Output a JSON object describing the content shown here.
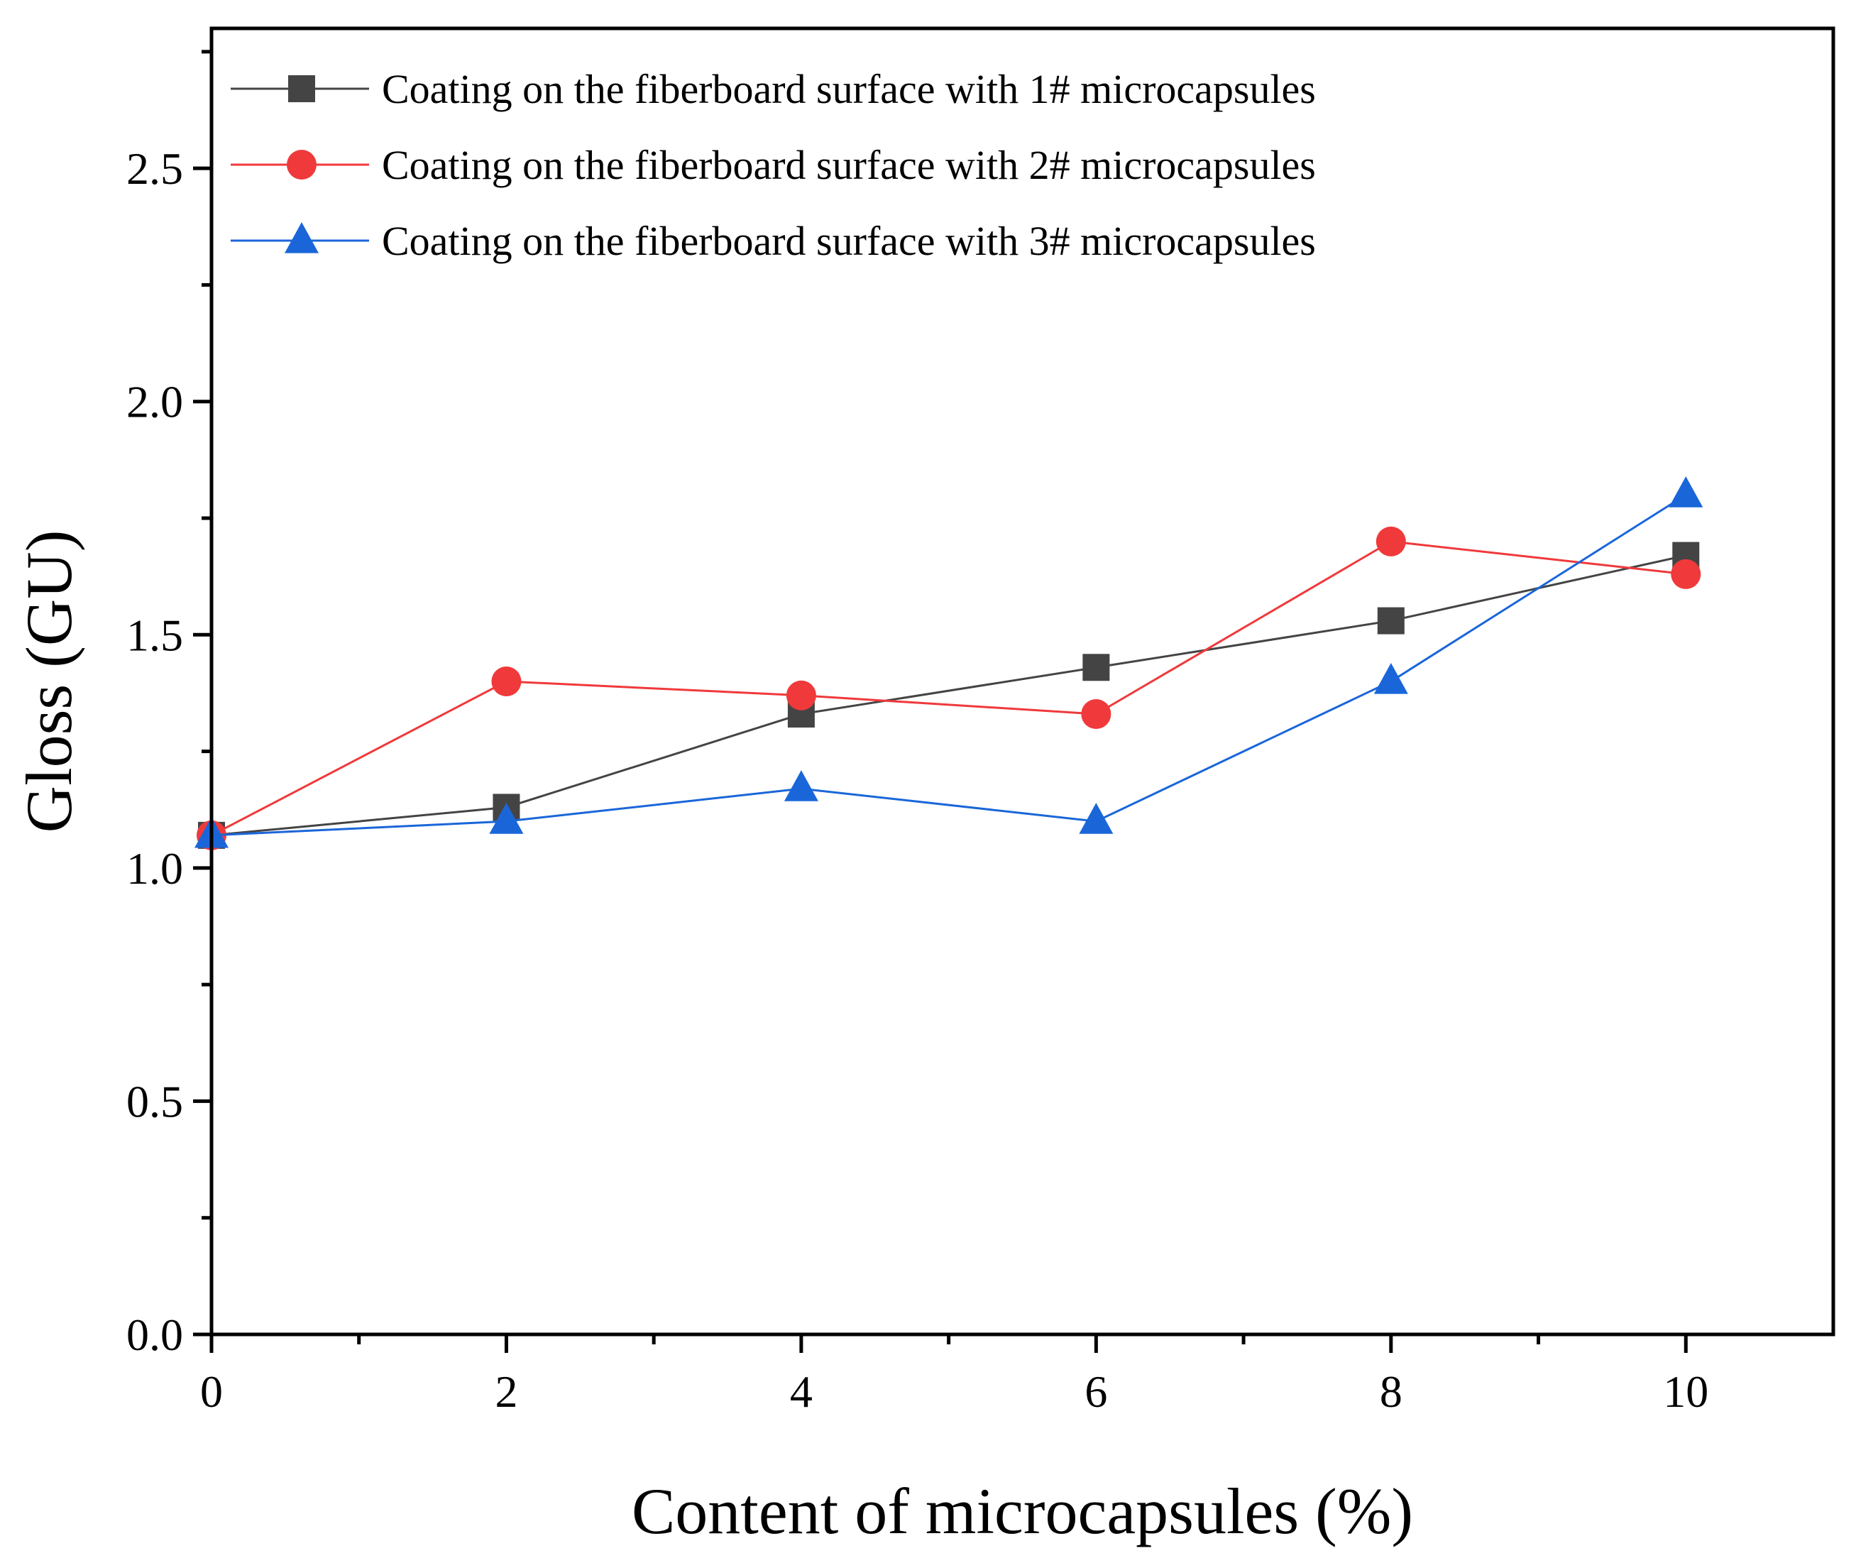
{
  "chart_data": {
    "type": "line",
    "title": "",
    "xlabel": "Content of microcapsules (%)",
    "ylabel": "Gloss (GU)",
    "xlim": [
      0,
      11
    ],
    "ylim": [
      0,
      2.8
    ],
    "x_ticks": [
      0,
      2,
      4,
      6,
      8,
      10
    ],
    "x_tick_labels": [
      "0",
      "2",
      "4",
      "6",
      "8",
      "10"
    ],
    "y_ticks": [
      0,
      0.5,
      1.0,
      1.5,
      2.0,
      2.5
    ],
    "y_tick_labels": [
      "0.0",
      "0.5",
      "1.0",
      "1.5",
      "2.0",
      "2.5"
    ],
    "grid": false,
    "legend_position": "top-left",
    "x": [
      0,
      2,
      4,
      6,
      8,
      10
    ],
    "series": [
      {
        "name": "Coating on the fiberboard surface with 1# microcapsules",
        "marker": "square",
        "color": "#444444",
        "values": [
          1.07,
          1.13,
          1.33,
          1.43,
          1.53,
          1.67
        ]
      },
      {
        "name": "Coating on the fiberboard surface with 2# microcapsules",
        "marker": "circle",
        "color": "#f0393b",
        "values": [
          1.07,
          1.4,
          1.37,
          1.33,
          1.7,
          1.63
        ]
      },
      {
        "name": "Coating on the fiberboard surface with 3# microcapsules",
        "marker": "triangle",
        "color": "#1a66d9",
        "values": [
          1.07,
          1.1,
          1.17,
          1.1,
          1.4,
          1.8
        ]
      }
    ]
  }
}
